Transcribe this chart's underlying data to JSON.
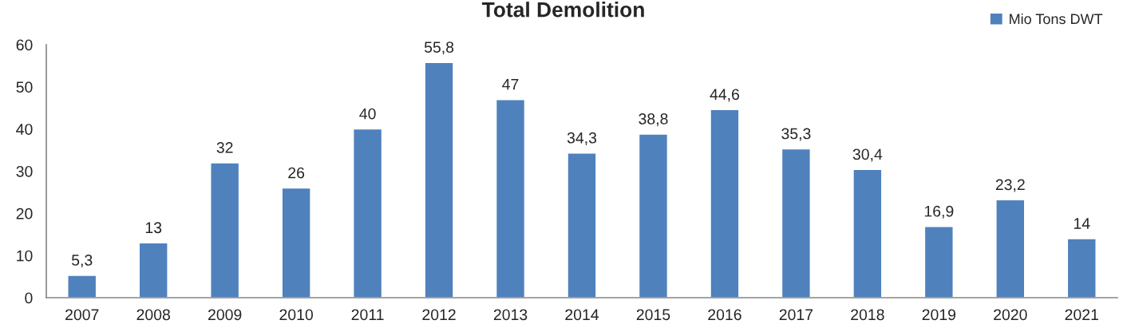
{
  "chart_data": {
    "type": "bar",
    "title": "Total Demolition",
    "categories": [
      "2007",
      "2008",
      "2009",
      "2010",
      "2011",
      "2012",
      "2013",
      "2014",
      "2015",
      "2016",
      "2017",
      "2018",
      "2019",
      "2020",
      "2021"
    ],
    "series": [
      {
        "name": "Mio Tons DWT",
        "color": "#4f81bd",
        "values": [
          5.3,
          13,
          32,
          26,
          40,
          55.8,
          47,
          34.3,
          38.8,
          44.6,
          35.3,
          30.4,
          16.9,
          23.2,
          14
        ],
        "value_labels": [
          "5,3",
          "13",
          "32",
          "26",
          "40",
          "55,8",
          "47",
          "34,3",
          "38,8",
          "44,6",
          "35,3",
          "30,4",
          "16,9",
          "23,2",
          "14"
        ]
      }
    ],
    "ylim": [
      0,
      60
    ],
    "yticks": [
      0,
      10,
      20,
      30,
      40,
      50,
      60
    ],
    "grid": false,
    "legend": "top right"
  }
}
